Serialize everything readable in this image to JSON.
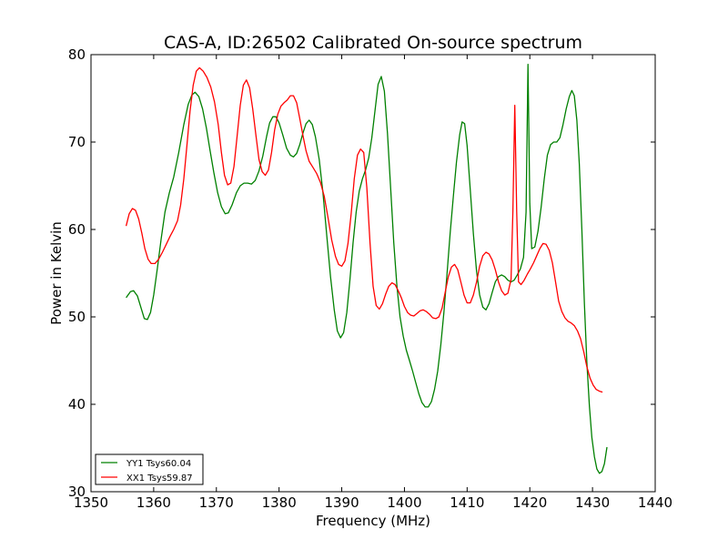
{
  "chart_data": {
    "type": "line",
    "title": "CAS-A, ID:26502 Calibrated On-source spectrum",
    "xlabel": "Frequency (MHz)",
    "ylabel": "Power in Kelvin",
    "xlim": [
      1350,
      1440
    ],
    "ylim": [
      30,
      80
    ],
    "xticks": [
      1350,
      1360,
      1370,
      1380,
      1390,
      1400,
      1410,
      1420,
      1430,
      1440
    ],
    "yticks": [
      30,
      40,
      50,
      60,
      70,
      80
    ],
    "grid": false,
    "legend_position": "lower-left",
    "series": [
      {
        "name": "YY1 Tsys60.04",
        "color": "#008000",
        "points": [
          [
            1355.6,
            52.2
          ],
          [
            1356.3,
            52.9
          ],
          [
            1356.8,
            53.0
          ],
          [
            1357.4,
            52.4
          ],
          [
            1358.0,
            51.0
          ],
          [
            1358.5,
            49.8
          ],
          [
            1359.0,
            49.7
          ],
          [
            1359.5,
            50.5
          ],
          [
            1360.0,
            52.5
          ],
          [
            1360.6,
            55.6
          ],
          [
            1361.2,
            59.0
          ],
          [
            1361.8,
            62.0
          ],
          [
            1362.5,
            64.2
          ],
          [
            1363.2,
            66.0
          ],
          [
            1364.0,
            68.8
          ],
          [
            1364.8,
            72.0
          ],
          [
            1365.5,
            74.3
          ],
          [
            1366.1,
            75.4
          ],
          [
            1366.6,
            75.7
          ],
          [
            1367.2,
            75.2
          ],
          [
            1367.8,
            73.8
          ],
          [
            1368.4,
            71.6
          ],
          [
            1369.0,
            69.0
          ],
          [
            1369.6,
            66.5
          ],
          [
            1370.2,
            64.2
          ],
          [
            1370.8,
            62.6
          ],
          [
            1371.4,
            61.8
          ],
          [
            1371.9,
            61.9
          ],
          [
            1372.5,
            62.8
          ],
          [
            1373.2,
            64.2
          ],
          [
            1373.8,
            65.0
          ],
          [
            1374.4,
            65.3
          ],
          [
            1375.0,
            65.3
          ],
          [
            1375.6,
            65.2
          ],
          [
            1376.2,
            65.6
          ],
          [
            1376.8,
            66.7
          ],
          [
            1377.4,
            68.4
          ],
          [
            1378.0,
            70.6
          ],
          [
            1378.5,
            72.2
          ],
          [
            1379.0,
            72.9
          ],
          [
            1379.5,
            72.9
          ],
          [
            1380.0,
            72.2
          ],
          [
            1380.6,
            70.8
          ],
          [
            1381.2,
            69.3
          ],
          [
            1381.8,
            68.5
          ],
          [
            1382.3,
            68.3
          ],
          [
            1382.8,
            68.7
          ],
          [
            1383.3,
            69.7
          ],
          [
            1383.8,
            71.0
          ],
          [
            1384.3,
            72.1
          ],
          [
            1384.8,
            72.5
          ],
          [
            1385.3,
            72.0
          ],
          [
            1385.8,
            70.6
          ],
          [
            1386.4,
            68.0
          ],
          [
            1387.0,
            64.2
          ],
          [
            1387.6,
            59.4
          ],
          [
            1388.2,
            54.6
          ],
          [
            1388.8,
            50.8
          ],
          [
            1389.3,
            48.4
          ],
          [
            1389.8,
            47.6
          ],
          [
            1390.3,
            48.2
          ],
          [
            1390.8,
            50.5
          ],
          [
            1391.3,
            54.2
          ],
          [
            1391.8,
            58.5
          ],
          [
            1392.3,
            62.0
          ],
          [
            1392.8,
            64.4
          ],
          [
            1393.3,
            65.8
          ],
          [
            1393.8,
            66.8
          ],
          [
            1394.3,
            68.2
          ],
          [
            1394.8,
            70.5
          ],
          [
            1395.3,
            73.6
          ],
          [
            1395.8,
            76.6
          ],
          [
            1396.3,
            77.5
          ],
          [
            1396.8,
            75.8
          ],
          [
            1397.3,
            71.0
          ],
          [
            1397.8,
            64.7
          ],
          [
            1398.3,
            58.5
          ],
          [
            1398.8,
            53.5
          ],
          [
            1399.3,
            50.0
          ],
          [
            1399.8,
            47.8
          ],
          [
            1400.3,
            46.2
          ],
          [
            1400.8,
            45.0
          ],
          [
            1401.3,
            43.8
          ],
          [
            1401.8,
            42.5
          ],
          [
            1402.3,
            41.2
          ],
          [
            1402.8,
            40.2
          ],
          [
            1403.3,
            39.7
          ],
          [
            1403.8,
            39.7
          ],
          [
            1404.3,
            40.3
          ],
          [
            1404.8,
            41.7
          ],
          [
            1405.3,
            43.8
          ],
          [
            1405.8,
            46.8
          ],
          [
            1406.3,
            50.5
          ],
          [
            1406.8,
            55.0
          ],
          [
            1407.3,
            59.6
          ],
          [
            1407.8,
            63.8
          ],
          [
            1408.3,
            67.7
          ],
          [
            1408.8,
            70.8
          ],
          [
            1409.2,
            72.3
          ],
          [
            1409.6,
            72.1
          ],
          [
            1410.0,
            69.6
          ],
          [
            1410.5,
            64.5
          ],
          [
            1411.0,
            59.5
          ],
          [
            1411.5,
            55.2
          ],
          [
            1412.0,
            52.5
          ],
          [
            1412.5,
            51.1
          ],
          [
            1413.0,
            50.8
          ],
          [
            1413.5,
            51.5
          ],
          [
            1414.0,
            52.8
          ],
          [
            1414.5,
            54.0
          ],
          [
            1415.0,
            54.6
          ],
          [
            1415.5,
            54.8
          ],
          [
            1416.0,
            54.6
          ],
          [
            1416.5,
            54.2
          ],
          [
            1417.0,
            54.0
          ],
          [
            1417.5,
            54.2
          ],
          [
            1418.0,
            54.8
          ],
          [
            1418.5,
            55.5
          ],
          [
            1419.0,
            56.8
          ],
          [
            1419.4,
            62.0
          ],
          [
            1419.7,
            78.9
          ],
          [
            1420.0,
            63.0
          ],
          [
            1420.3,
            57.8
          ],
          [
            1420.8,
            58.0
          ],
          [
            1421.3,
            59.8
          ],
          [
            1421.8,
            62.5
          ],
          [
            1422.3,
            65.8
          ],
          [
            1422.8,
            68.5
          ],
          [
            1423.3,
            69.7
          ],
          [
            1423.8,
            70.0
          ],
          [
            1424.3,
            70.0
          ],
          [
            1424.8,
            70.5
          ],
          [
            1425.3,
            72.0
          ],
          [
            1425.8,
            73.8
          ],
          [
            1426.3,
            75.2
          ],
          [
            1426.7,
            75.9
          ],
          [
            1427.1,
            75.3
          ],
          [
            1427.5,
            72.5
          ],
          [
            1427.9,
            67.5
          ],
          [
            1428.3,
            60.0
          ],
          [
            1428.7,
            51.5
          ],
          [
            1429.1,
            44.8
          ],
          [
            1429.5,
            39.8
          ],
          [
            1429.9,
            36.2
          ],
          [
            1430.3,
            34.0
          ],
          [
            1430.7,
            32.6
          ],
          [
            1431.1,
            32.1
          ],
          [
            1431.5,
            32.3
          ],
          [
            1431.9,
            33.2
          ],
          [
            1432.3,
            35.1
          ]
        ]
      },
      {
        "name": "XX1 Tsys59.87",
        "color": "#ff0000",
        "points": [
          [
            1355.6,
            60.4
          ],
          [
            1356.1,
            61.8
          ],
          [
            1356.6,
            62.4
          ],
          [
            1357.1,
            62.2
          ],
          [
            1357.6,
            61.2
          ],
          [
            1358.1,
            59.6
          ],
          [
            1358.6,
            57.8
          ],
          [
            1359.1,
            56.6
          ],
          [
            1359.6,
            56.1
          ],
          [
            1360.2,
            56.1
          ],
          [
            1360.8,
            56.6
          ],
          [
            1361.4,
            57.4
          ],
          [
            1362.0,
            58.3
          ],
          [
            1362.6,
            59.2
          ],
          [
            1363.2,
            60.0
          ],
          [
            1363.8,
            61.0
          ],
          [
            1364.3,
            62.8
          ],
          [
            1364.8,
            65.8
          ],
          [
            1365.3,
            69.6
          ],
          [
            1365.8,
            73.5
          ],
          [
            1366.3,
            76.5
          ],
          [
            1366.8,
            78.1
          ],
          [
            1367.3,
            78.5
          ],
          [
            1367.9,
            78.1
          ],
          [
            1368.5,
            77.4
          ],
          [
            1369.1,
            76.3
          ],
          [
            1369.7,
            74.6
          ],
          [
            1370.3,
            72.0
          ],
          [
            1370.8,
            68.8
          ],
          [
            1371.3,
            66.2
          ],
          [
            1371.8,
            65.1
          ],
          [
            1372.3,
            65.3
          ],
          [
            1372.8,
            67.2
          ],
          [
            1373.3,
            70.6
          ],
          [
            1373.8,
            74.2
          ],
          [
            1374.3,
            76.5
          ],
          [
            1374.8,
            77.1
          ],
          [
            1375.3,
            76.2
          ],
          [
            1375.8,
            73.8
          ],
          [
            1376.3,
            70.8
          ],
          [
            1376.8,
            68.0
          ],
          [
            1377.3,
            66.6
          ],
          [
            1377.8,
            66.2
          ],
          [
            1378.3,
            66.8
          ],
          [
            1378.8,
            68.8
          ],
          [
            1379.3,
            71.4
          ],
          [
            1379.8,
            73.2
          ],
          [
            1380.3,
            74.1
          ],
          [
            1380.8,
            74.5
          ],
          [
            1381.3,
            74.8
          ],
          [
            1381.8,
            75.3
          ],
          [
            1382.3,
            75.3
          ],
          [
            1382.8,
            74.5
          ],
          [
            1383.3,
            72.7
          ],
          [
            1383.8,
            70.8
          ],
          [
            1384.3,
            69.0
          ],
          [
            1384.8,
            67.8
          ],
          [
            1385.4,
            67.1
          ],
          [
            1386.0,
            66.4
          ],
          [
            1386.6,
            65.4
          ],
          [
            1387.2,
            63.8
          ],
          [
            1387.8,
            61.4
          ],
          [
            1388.4,
            58.8
          ],
          [
            1389.0,
            56.9
          ],
          [
            1389.5,
            56.0
          ],
          [
            1390.0,
            55.8
          ],
          [
            1390.5,
            56.4
          ],
          [
            1391.0,
            58.4
          ],
          [
            1391.5,
            61.8
          ],
          [
            1392.0,
            65.8
          ],
          [
            1392.5,
            68.5
          ],
          [
            1393.0,
            69.2
          ],
          [
            1393.5,
            68.8
          ],
          [
            1394.0,
            64.8
          ],
          [
            1394.5,
            58.5
          ],
          [
            1395.0,
            53.5
          ],
          [
            1395.5,
            51.3
          ],
          [
            1396.0,
            50.9
          ],
          [
            1396.5,
            51.5
          ],
          [
            1397.0,
            52.6
          ],
          [
            1397.5,
            53.5
          ],
          [
            1398.0,
            53.9
          ],
          [
            1398.5,
            53.7
          ],
          [
            1399.0,
            53.0
          ],
          [
            1399.5,
            52.2
          ],
          [
            1400.0,
            51.2
          ],
          [
            1400.5,
            50.5
          ],
          [
            1401.0,
            50.2
          ],
          [
            1401.5,
            50.1
          ],
          [
            1402.0,
            50.4
          ],
          [
            1402.5,
            50.7
          ],
          [
            1403.0,
            50.8
          ],
          [
            1403.5,
            50.6
          ],
          [
            1404.0,
            50.3
          ],
          [
            1404.5,
            49.9
          ],
          [
            1405.0,
            49.8
          ],
          [
            1405.5,
            50.0
          ],
          [
            1406.0,
            51.0
          ],
          [
            1406.5,
            52.8
          ],
          [
            1407.0,
            54.6
          ],
          [
            1407.5,
            55.7
          ],
          [
            1408.0,
            56.0
          ],
          [
            1408.5,
            55.4
          ],
          [
            1409.0,
            54.0
          ],
          [
            1409.5,
            52.5
          ],
          [
            1410.0,
            51.6
          ],
          [
            1410.5,
            51.6
          ],
          [
            1411.0,
            52.5
          ],
          [
            1411.5,
            54.0
          ],
          [
            1412.0,
            55.8
          ],
          [
            1412.5,
            57.0
          ],
          [
            1413.0,
            57.4
          ],
          [
            1413.5,
            57.2
          ],
          [
            1414.0,
            56.5
          ],
          [
            1414.5,
            55.4
          ],
          [
            1415.0,
            54.0
          ],
          [
            1415.5,
            53.0
          ],
          [
            1416.0,
            52.5
          ],
          [
            1416.5,
            52.7
          ],
          [
            1417.0,
            54.3
          ],
          [
            1417.3,
            62.0
          ],
          [
            1417.6,
            74.2
          ],
          [
            1417.9,
            62.0
          ],
          [
            1418.2,
            54.0
          ],
          [
            1418.6,
            53.7
          ],
          [
            1419.1,
            54.2
          ],
          [
            1419.6,
            54.9
          ],
          [
            1420.1,
            55.5
          ],
          [
            1420.6,
            56.2
          ],
          [
            1421.1,
            57.0
          ],
          [
            1421.6,
            57.8
          ],
          [
            1422.1,
            58.4
          ],
          [
            1422.6,
            58.3
          ],
          [
            1423.1,
            57.6
          ],
          [
            1423.6,
            56.2
          ],
          [
            1424.1,
            54.0
          ],
          [
            1424.6,
            51.8
          ],
          [
            1425.1,
            50.6
          ],
          [
            1425.6,
            49.9
          ],
          [
            1426.1,
            49.5
          ],
          [
            1426.6,
            49.3
          ],
          [
            1427.1,
            49.0
          ],
          [
            1427.6,
            48.4
          ],
          [
            1428.1,
            47.5
          ],
          [
            1428.6,
            46.0
          ],
          [
            1429.1,
            44.3
          ],
          [
            1429.6,
            43.0
          ],
          [
            1430.1,
            42.2
          ],
          [
            1430.6,
            41.7
          ],
          [
            1431.1,
            41.5
          ],
          [
            1431.6,
            41.4
          ]
        ]
      }
    ]
  }
}
